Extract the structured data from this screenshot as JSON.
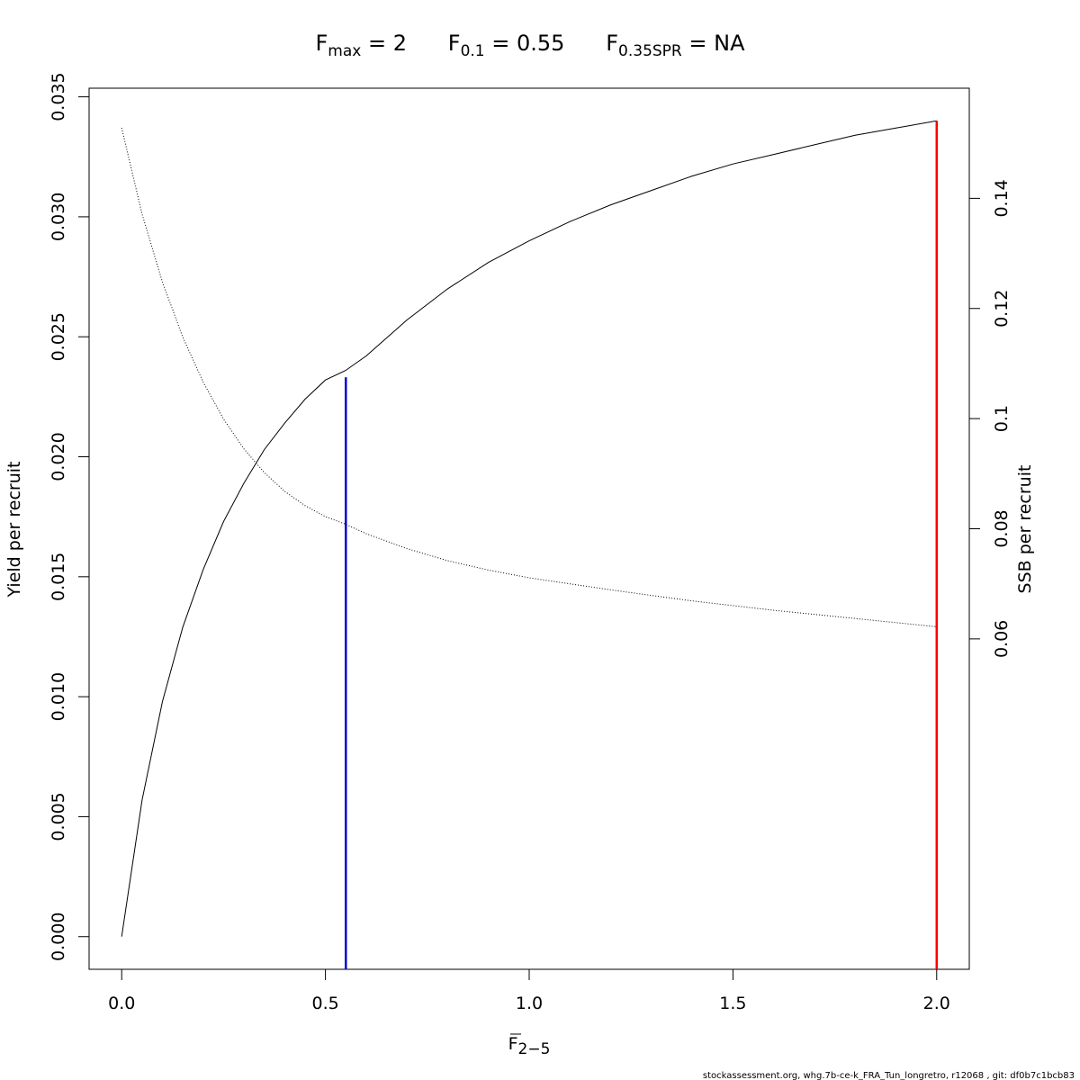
{
  "chart_data": {
    "type": "line",
    "title": {
      "parts": [
        {
          "main": "F",
          "sub": "max",
          "rest": " = 2"
        },
        {
          "main": "F",
          "sub": "0.1",
          "rest": " = 0.55"
        },
        {
          "main": "F",
          "sub": "0.35SPR",
          "rest": " = NA"
        }
      ]
    },
    "xlabel": {
      "main": "F",
      "sub": "2−5"
    },
    "ylabel": "Yield per recruit",
    "ylabel_right": "SSB per recruit",
    "xlim": [
      -0.08,
      2.08
    ],
    "ylim": [
      -0.00136,
      0.03536
    ],
    "ylim_right": [
      0.0,
      0.16
    ],
    "x_ticks": [
      0,
      0.5,
      1,
      1.5,
      2
    ],
    "x_tick_labels": [
      "0.0",
      "0.5",
      "1.0",
      "1.5",
      "2.0"
    ],
    "y_ticks": [
      0,
      0.005,
      0.01,
      0.015,
      0.02,
      0.025,
      0.03,
      0.035
    ],
    "y_tick_labels": [
      "0.000",
      "0.005",
      "0.010",
      "0.015",
      "0.020",
      "0.025",
      "0.030",
      "0.035"
    ],
    "y_right_ticks": [
      0.06,
      0.08,
      0.1,
      0.12,
      0.14
    ],
    "y_right_tick_labels": [
      "0.06",
      "0.08",
      "0.1",
      "0.12",
      "0.14"
    ],
    "grid": false,
    "series": [
      {
        "axis": "left",
        "style": "solid",
        "color": "#000000",
        "x": [
          0,
          0.05,
          0.1,
          0.15,
          0.2,
          0.25,
          0.3,
          0.35,
          0.4,
          0.45,
          0.5,
          0.55,
          0.6,
          0.7,
          0.8,
          0.9,
          1.0,
          1.1,
          1.2,
          1.3,
          1.4,
          1.5,
          1.6,
          1.7,
          1.8,
          1.9,
          2.0
        ],
        "values": [
          0.0,
          0.0057,
          0.0098,
          0.0129,
          0.0153,
          0.0173,
          0.0189,
          0.0203,
          0.0214,
          0.0224,
          0.0232,
          0.0236,
          0.0242,
          0.0257,
          0.027,
          0.0281,
          0.029,
          0.0298,
          0.0305,
          0.0311,
          0.0317,
          0.0322,
          0.0326,
          0.033,
          0.0334,
          0.0337,
          0.034
        ]
      },
      {
        "axis": "right",
        "style": "dotted",
        "color": "#000000",
        "x": [
          0,
          0.05,
          0.1,
          0.15,
          0.2,
          0.25,
          0.3,
          0.35,
          0.4,
          0.45,
          0.5,
          0.55,
          0.6,
          0.7,
          0.8,
          0.9,
          1.0,
          1.2,
          1.4,
          1.6,
          1.8,
          2.0
        ],
        "values": [
          0.1528,
          0.1371,
          0.1248,
          0.1148,
          0.1066,
          0.0999,
          0.0945,
          0.0902,
          0.0868,
          0.0842,
          0.0822,
          0.0808,
          0.0791,
          0.0764,
          0.0742,
          0.0725,
          0.0711,
          0.0689,
          0.0669,
          0.0652,
          0.0637,
          0.0622
        ]
      }
    ],
    "reference_lines": [
      {
        "name": "F0.1",
        "x": 0.55,
        "y": 0.02331,
        "color": "#0000cd"
      },
      {
        "name": "Fmax",
        "x": 2.0,
        "y": 0.034,
        "color": "#ff0000"
      }
    ]
  },
  "footer": "stockassessment.org, whg.7b-ce-k_FRA_Tun_longretro, r12068 , git: df0b7c1bcb83"
}
